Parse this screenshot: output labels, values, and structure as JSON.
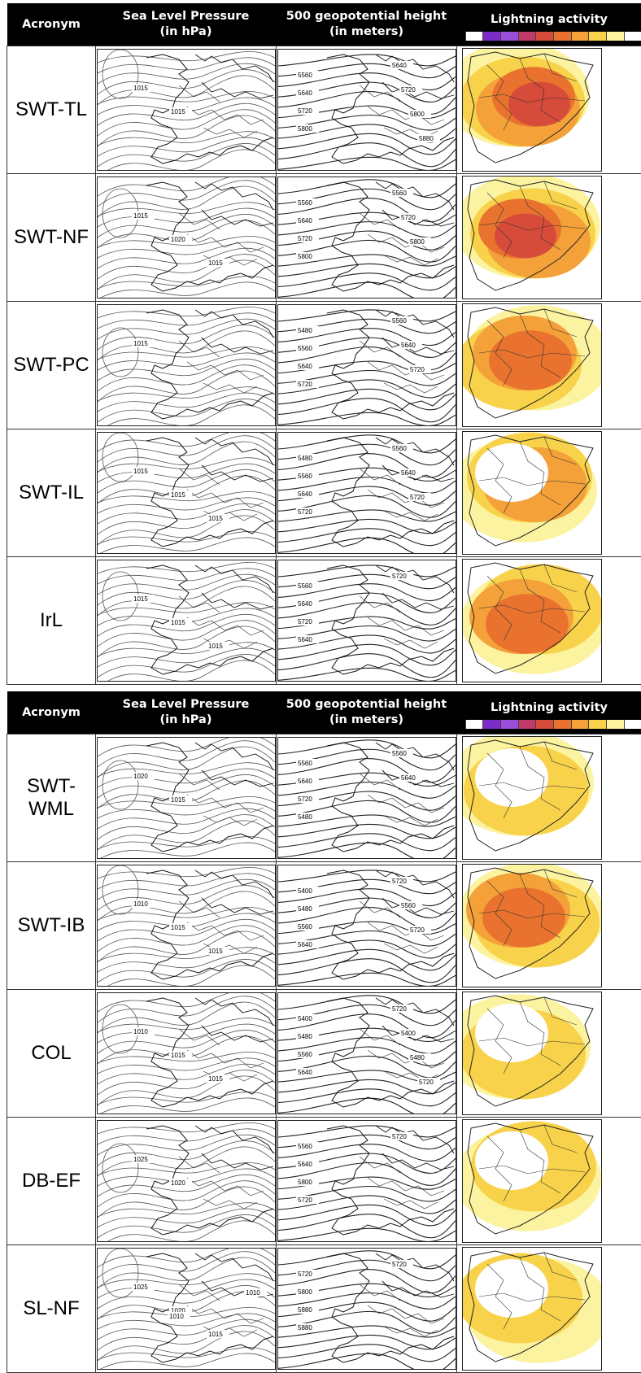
{
  "headers": {
    "acronym": "Acronym",
    "slp": "Sea Level Pressure\n(in hPa)",
    "z500": "500 geopotential height\n(in meters)",
    "lightning": "Lightning activity"
  },
  "scale_colors": [
    "#ffffff",
    "#7b2cc8",
    "#9a4fd8",
    "#c03a6a",
    "#d64b3a",
    "#e9732e",
    "#f4a13a",
    "#f8d24a",
    "#fbf3a0",
    "#ffffff"
  ],
  "table1": [
    {
      "acronym": "SWT-TL",
      "slp_labels": [
        "1015",
        "1015"
      ],
      "z500_labels": [
        "5560",
        "5640",
        "5720",
        "5800",
        "5640",
        "5720",
        "5800",
        "5880"
      ],
      "intensity": 0.85
    },
    {
      "acronym": "SWT-NF",
      "slp_labels": [
        "1015",
        "1020",
        "1015"
      ],
      "z500_labels": [
        "5560",
        "5640",
        "5720",
        "5800",
        "5560",
        "5720",
        "5800"
      ],
      "intensity": 0.75
    },
    {
      "acronym": "SWT-PC",
      "slp_labels": [
        "1015"
      ],
      "z500_labels": [
        "5480",
        "5560",
        "5640",
        "5720",
        "5560",
        "5640",
        "5720"
      ],
      "intensity": 0.6
    },
    {
      "acronym": "SWT-IL",
      "slp_labels": [
        "1015",
        "1015",
        "1015"
      ],
      "z500_labels": [
        "5480",
        "5560",
        "5640",
        "5720",
        "5560",
        "5640",
        "5720"
      ],
      "intensity": 0.45
    },
    {
      "acronym": "IrL",
      "slp_labels": [
        "1015",
        "1015",
        "1015"
      ],
      "z500_labels": [
        "5560",
        "5640",
        "5720",
        "5640",
        "5720"
      ],
      "intensity": 0.7
    }
  ],
  "table2": [
    {
      "acronym": "SWT-\nWML",
      "slp_labels": [
        "1020",
        "1015"
      ],
      "z500_labels": [
        "5560",
        "5640",
        "5720",
        "5480",
        "5560",
        "5640"
      ],
      "intensity": 0.4
    },
    {
      "acronym": "SWT-IB",
      "slp_labels": [
        "1010",
        "1015",
        "1015"
      ],
      "z500_labels": [
        "5400",
        "5480",
        "5560",
        "5640",
        "5720",
        "5560",
        "5720"
      ],
      "intensity": 0.6
    },
    {
      "acronym": "COL",
      "slp_labels": [
        "1010",
        "1015",
        "1015"
      ],
      "z500_labels": [
        "5400",
        "5480",
        "5560",
        "5640",
        "5720",
        "5400",
        "5480",
        "5720"
      ],
      "intensity": 0.4
    },
    {
      "acronym": "DB-EF",
      "slp_labels": [
        "1025",
        "1020"
      ],
      "z500_labels": [
        "5560",
        "5640",
        "5800",
        "5720",
        "5720"
      ],
      "intensity": 0.35
    },
    {
      "acronym": "SL-NF",
      "slp_labels": [
        "1025",
        "1020",
        "1015",
        "1010",
        "1010"
      ],
      "z500_labels": [
        "5720",
        "5800",
        "5880",
        "5880",
        "5720"
      ],
      "intensity": 0.3
    }
  ]
}
